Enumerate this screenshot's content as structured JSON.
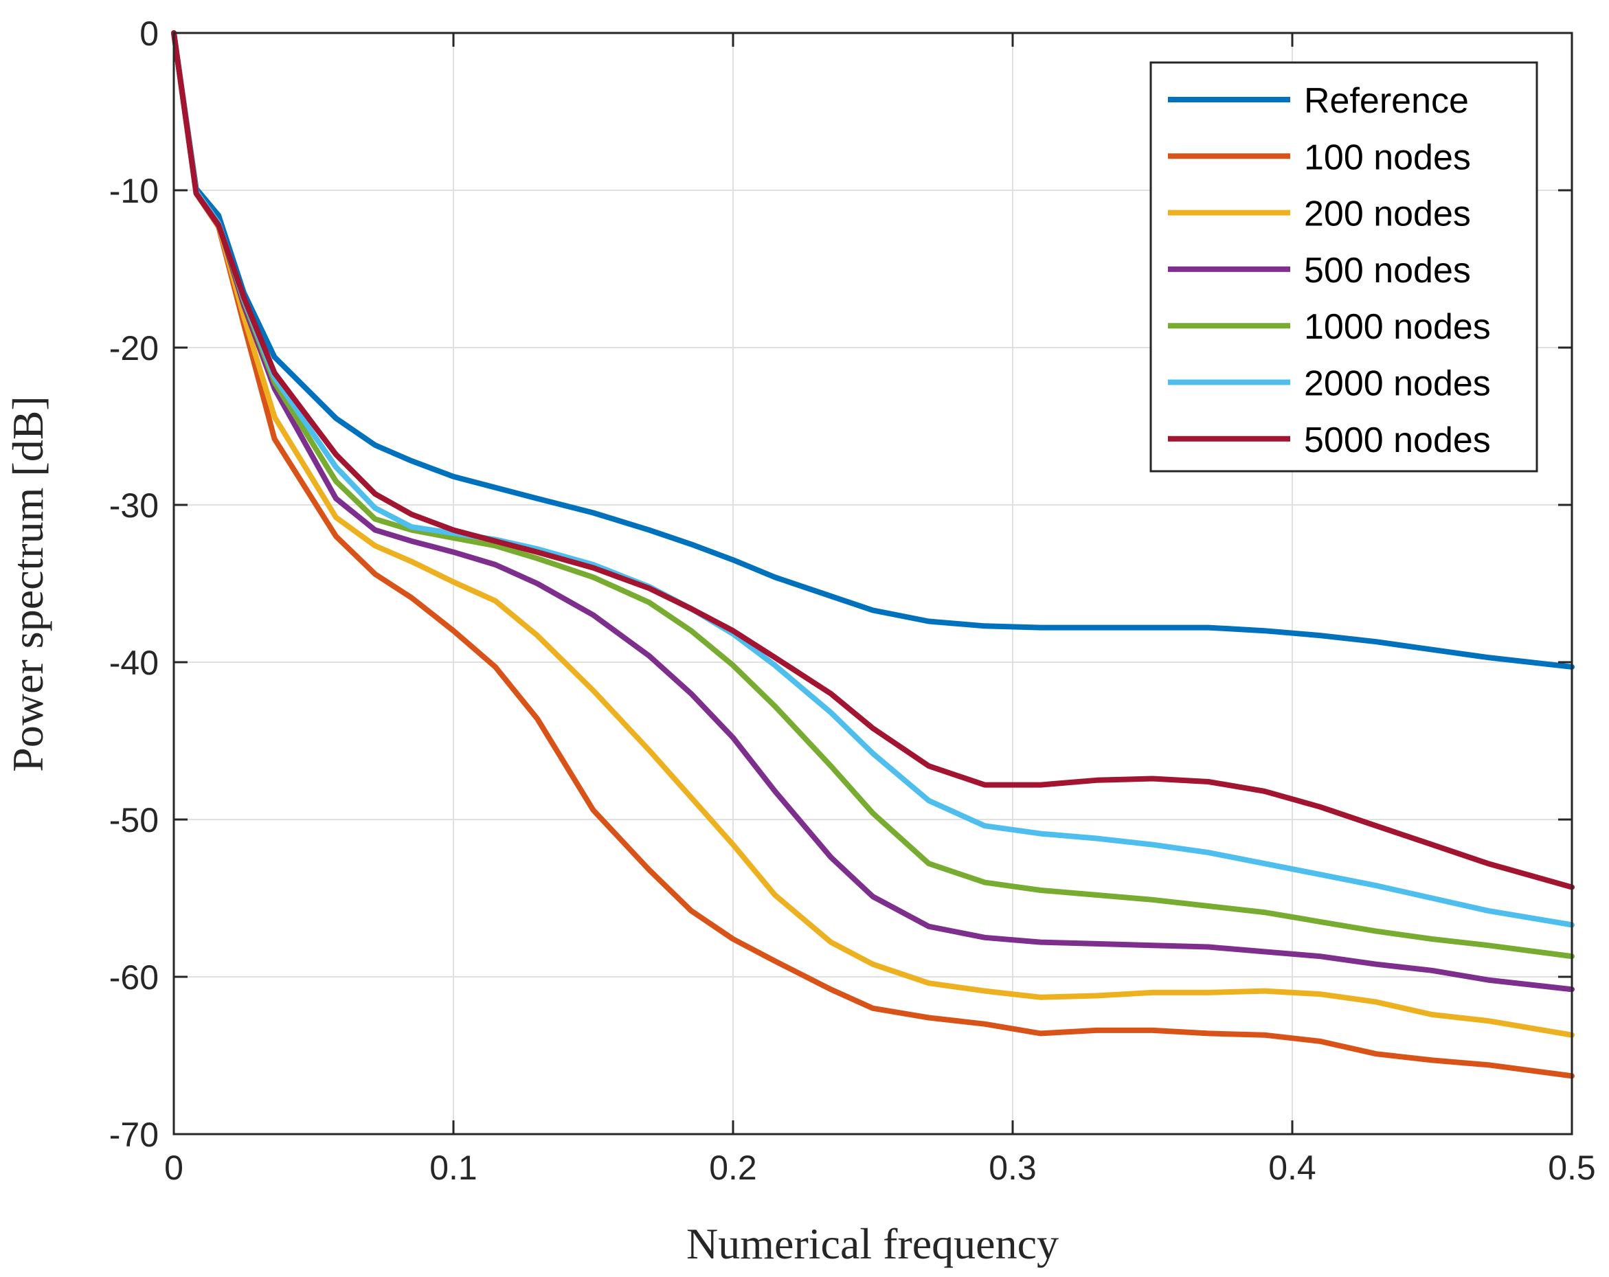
{
  "chart_data": {
    "type": "line",
    "title": "",
    "xlabel": "Numerical frequency",
    "ylabel": "Power spectrum [dB]",
    "xlim": [
      0,
      0.5
    ],
    "ylim": [
      -70,
      0
    ],
    "xticks": [
      0,
      0.1,
      0.2,
      0.3,
      0.4,
      0.5
    ],
    "xtick_labels": [
      "0",
      "0.1",
      "0.2",
      "0.3",
      "0.4",
      "0.5"
    ],
    "yticks": [
      0,
      -10,
      -20,
      -30,
      -40,
      -50,
      -60,
      -70
    ],
    "ytick_labels": [
      "0",
      "-10",
      "-20",
      "-30",
      "-40",
      "-50",
      "-60",
      "-70"
    ],
    "grid": true,
    "legend_position": "top-right",
    "x": [
      0,
      0.008,
      0.016,
      0.025,
      0.036,
      0.058,
      0.072,
      0.085,
      0.1,
      0.115,
      0.13,
      0.15,
      0.17,
      0.185,
      0.2,
      0.215,
      0.235,
      0.25,
      0.27,
      0.29,
      0.31,
      0.33,
      0.35,
      0.37,
      0.39,
      0.41,
      0.43,
      0.45,
      0.47,
      0.5
    ],
    "series": [
      {
        "name": "Reference",
        "color": "#0072BD",
        "values": [
          0,
          -9.9,
          -11.6,
          -16.5,
          -20.6,
          -24.5,
          -26.2,
          -27.2,
          -28.2,
          -28.9,
          -29.6,
          -30.5,
          -31.6,
          -32.5,
          -33.5,
          -34.6,
          -35.8,
          -36.7,
          -37.4,
          -37.7,
          -37.8,
          -37.8,
          -37.8,
          -37.8,
          -38.0,
          -38.3,
          -38.7,
          -39.2,
          -39.7,
          -40.3
        ]
      },
      {
        "name": "100 nodes",
        "color": "#D95319",
        "values": [
          0,
          -10.2,
          -12.3,
          -18.5,
          -25.8,
          -32.0,
          -34.4,
          -35.9,
          -38.0,
          -40.3,
          -43.6,
          -49.4,
          -53.2,
          -55.8,
          -57.6,
          -59.0,
          -60.8,
          -62.0,
          -62.6,
          -63.0,
          -63.6,
          -63.4,
          -63.4,
          -63.6,
          -63.7,
          -64.1,
          -64.9,
          -65.3,
          -65.6,
          -66.3
        ]
      },
      {
        "name": "200 nodes",
        "color": "#EDB120",
        "values": [
          0,
          -10.1,
          -12.2,
          -18.0,
          -24.4,
          -30.8,
          -32.6,
          -33.6,
          -34.9,
          -36.1,
          -38.3,
          -41.8,
          -45.6,
          -48.6,
          -51.6,
          -54.8,
          -57.8,
          -59.2,
          -60.4,
          -60.9,
          -61.3,
          -61.2,
          -61.0,
          -61.0,
          -60.9,
          -61.1,
          -61.6,
          -62.4,
          -62.8,
          -63.7
        ]
      },
      {
        "name": "500 nodes",
        "color": "#7E2F8E",
        "values": [
          0,
          -10.1,
          -12.1,
          -17.3,
          -22.6,
          -29.6,
          -31.6,
          -32.3,
          -33.0,
          -33.8,
          -35.0,
          -37.0,
          -39.6,
          -42.0,
          -44.8,
          -48.2,
          -52.4,
          -54.9,
          -56.8,
          -57.5,
          -57.8,
          -57.9,
          -58.0,
          -58.1,
          -58.4,
          -58.7,
          -59.2,
          -59.6,
          -60.2,
          -60.8
        ]
      },
      {
        "name": "1000 nodes",
        "color": "#77AC30",
        "values": [
          0,
          -10.1,
          -12.1,
          -17.0,
          -22.2,
          -28.5,
          -30.9,
          -31.6,
          -32.1,
          -32.6,
          -33.4,
          -34.6,
          -36.2,
          -38.0,
          -40.2,
          -42.8,
          -46.6,
          -49.6,
          -52.8,
          -54.0,
          -54.5,
          -54.8,
          -55.1,
          -55.5,
          -55.9,
          -56.5,
          -57.1,
          -57.6,
          -58.0,
          -58.7
        ]
      },
      {
        "name": "2000 nodes",
        "color": "#4DBEEE",
        "values": [
          0,
          -10.1,
          -12.1,
          -16.9,
          -21.9,
          -27.6,
          -30.2,
          -31.4,
          -31.8,
          -32.2,
          -32.8,
          -33.8,
          -35.2,
          -36.6,
          -38.2,
          -40.2,
          -43.2,
          -45.8,
          -48.8,
          -50.4,
          -50.9,
          -51.2,
          -51.6,
          -52.1,
          -52.8,
          -53.5,
          -54.2,
          -55.0,
          -55.8,
          -56.7
        ]
      },
      {
        "name": "5000 nodes",
        "color": "#A2142F",
        "values": [
          0,
          -10.2,
          -12.2,
          -16.8,
          -21.6,
          -26.8,
          -29.3,
          -30.6,
          -31.6,
          -32.3,
          -33.0,
          -34.0,
          -35.3,
          -36.6,
          -38.0,
          -39.7,
          -42.0,
          -44.2,
          -46.6,
          -47.8,
          -47.8,
          -47.5,
          -47.4,
          -47.6,
          -48.2,
          -49.2,
          -50.4,
          -51.6,
          -52.8,
          -54.3
        ]
      }
    ]
  }
}
